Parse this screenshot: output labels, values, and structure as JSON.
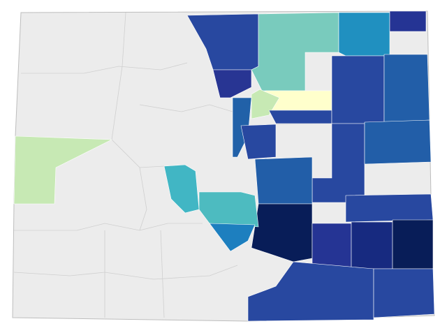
{
  "regions": [
    {
      "color": "#2848a0"
    },
    {
      "color": "#79cbbd"
    },
    {
      "color": "#2090c0"
    },
    {
      "color": "#253494"
    },
    {
      "color": "#283593"
    },
    {
      "color": "#ffffcc"
    },
    {
      "color": "#c7e9b4"
    },
    {
      "color": "#2161a8"
    },
    {
      "color": "#2848a0"
    },
    {
      "color": "#2848a0"
    },
    {
      "color": "#2848a0"
    },
    {
      "color": "#225ea8"
    },
    {
      "color": "#2848a0"
    },
    {
      "color": "#225ea8"
    },
    {
      "color": "#225ea8"
    },
    {
      "color": "#2848a0"
    },
    {
      "color": "#081d58"
    },
    {
      "color": "#253494"
    },
    {
      "color": "#172a80"
    },
    {
      "color": "#081d58"
    },
    {
      "color": "#2848a0"
    },
    {
      "color": "#2848a0"
    },
    {
      "color": "#4dbbc0"
    },
    {
      "color": "#41b6c4"
    },
    {
      "color": "#1d7fbf"
    },
    {
      "color": "#c7e9b4"
    }
  ]
}
